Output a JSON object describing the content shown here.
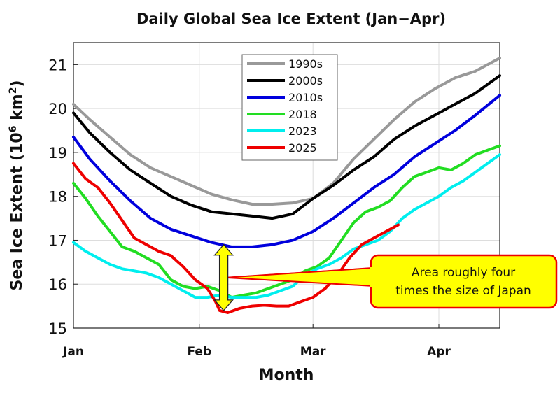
{
  "chart_data": {
    "type": "line",
    "title": "Daily Global Sea Ice Extent (Jan−Apr)",
    "xlabel": "Month",
    "ylabel_main": "Sea Ice Extent (10",
    "ylabel_exp": "6",
    "ylabel_unit": " km",
    "ylabel_exp2": "2",
    "ylabel_close": ")",
    "xlim": [
      1,
      106
    ],
    "ylim": [
      15,
      21.5
    ],
    "yticks": [
      15,
      16,
      17,
      18,
      19,
      20,
      21
    ],
    "xticks": [
      {
        "day": 1,
        "label": "Jan"
      },
      {
        "day": 32,
        "label": "Feb"
      },
      {
        "day": 60,
        "label": "Mar"
      },
      {
        "day": 91,
        "label": "Apr"
      }
    ],
    "grid": true,
    "legend_position": "top-center",
    "series": [
      {
        "name": "1990s",
        "color": "#999999",
        "x": [
          1,
          5,
          10,
          15,
          20,
          25,
          30,
          35,
          40,
          45,
          50,
          55,
          60,
          65,
          70,
          75,
          80,
          85,
          90,
          95,
          100,
          106
        ],
        "y": [
          20.1,
          19.75,
          19.35,
          18.95,
          18.65,
          18.45,
          18.25,
          18.05,
          17.92,
          17.82,
          17.82,
          17.85,
          17.95,
          18.3,
          18.85,
          19.3,
          19.75,
          20.15,
          20.45,
          20.7,
          20.85,
          21.15
        ]
      },
      {
        "name": "2000s",
        "color": "#000000",
        "x": [
          1,
          5,
          10,
          15,
          20,
          25,
          30,
          35,
          40,
          45,
          50,
          55,
          60,
          65,
          70,
          75,
          80,
          85,
          90,
          95,
          100,
          106
        ],
        "y": [
          19.9,
          19.45,
          19.0,
          18.6,
          18.3,
          18.0,
          17.8,
          17.65,
          17.6,
          17.55,
          17.5,
          17.6,
          17.95,
          18.25,
          18.6,
          18.9,
          19.3,
          19.6,
          19.85,
          20.1,
          20.35,
          20.75
        ]
      },
      {
        "name": "2010s",
        "color": "#0000dd",
        "x": [
          1,
          5,
          10,
          15,
          20,
          25,
          30,
          35,
          40,
          45,
          50,
          55,
          60,
          65,
          70,
          75,
          80,
          85,
          90,
          95,
          100,
          106
        ],
        "y": [
          19.35,
          18.85,
          18.35,
          17.9,
          17.5,
          17.25,
          17.1,
          16.95,
          16.85,
          16.85,
          16.9,
          17.0,
          17.2,
          17.5,
          17.85,
          18.2,
          18.5,
          18.9,
          19.2,
          19.5,
          19.85,
          20.3
        ]
      },
      {
        "name": "2018",
        "color": "#22dd22",
        "x": [
          1,
          4,
          7,
          10,
          13,
          16,
          19,
          22,
          25,
          28,
          31,
          34,
          37,
          40,
          43,
          46,
          49,
          52,
          55,
          58,
          61,
          64,
          67,
          70,
          73,
          76,
          79,
          82,
          85,
          88,
          91,
          94,
          97,
          100,
          103,
          106
        ],
        "y": [
          18.3,
          17.95,
          17.55,
          17.2,
          16.85,
          16.75,
          16.6,
          16.45,
          16.1,
          15.95,
          15.9,
          15.95,
          15.85,
          15.7,
          15.75,
          15.8,
          15.9,
          16.0,
          16.1,
          16.3,
          16.4,
          16.6,
          17.0,
          17.4,
          17.65,
          17.75,
          17.9,
          18.2,
          18.45,
          18.55,
          18.65,
          18.6,
          18.75,
          18.95,
          19.05,
          19.15
        ]
      },
      {
        "name": "2023",
        "color": "#00eeee",
        "x": [
          1,
          4,
          7,
          10,
          13,
          16,
          19,
          22,
          25,
          28,
          31,
          34,
          37,
          40,
          43,
          46,
          49,
          52,
          55,
          58,
          61,
          64,
          67,
          70,
          73,
          76,
          79,
          82,
          85,
          88,
          91,
          94,
          97,
          100,
          103,
          106
        ],
        "y": [
          16.95,
          16.75,
          16.6,
          16.45,
          16.35,
          16.3,
          16.25,
          16.15,
          16.0,
          15.85,
          15.7,
          15.7,
          15.75,
          15.7,
          15.7,
          15.7,
          15.75,
          15.85,
          15.95,
          16.2,
          16.35,
          16.45,
          16.6,
          16.8,
          16.9,
          17.0,
          17.2,
          17.5,
          17.7,
          17.85,
          18.0,
          18.2,
          18.35,
          18.55,
          18.75,
          18.95
        ]
      },
      {
        "name": "2025",
        "color": "#ee0000",
        "x": [
          1,
          4,
          7,
          10,
          13,
          16,
          19,
          22,
          25,
          28,
          31,
          34,
          36,
          37,
          39,
          42,
          45,
          48,
          51,
          54,
          57,
          60,
          63,
          66,
          69,
          72,
          75,
          78,
          81
        ],
        "y": [
          18.75,
          18.4,
          18.2,
          17.85,
          17.45,
          17.05,
          16.9,
          16.75,
          16.65,
          16.4,
          16.1,
          15.9,
          15.6,
          15.4,
          15.35,
          15.45,
          15.5,
          15.52,
          15.5,
          15.5,
          15.6,
          15.7,
          15.9,
          16.2,
          16.6,
          16.9,
          17.05,
          17.2,
          17.35
        ]
      }
    ],
    "annotation": {
      "lines": [
        "Area roughly four",
        "times the size of Japan"
      ],
      "arrow_day": 38,
      "arrow_from": 16.9,
      "arrow_to": 15.4,
      "colors": {
        "arrow": "#ffff00",
        "box_fill": "#ffff00",
        "box_border": "#ee0000"
      }
    }
  }
}
